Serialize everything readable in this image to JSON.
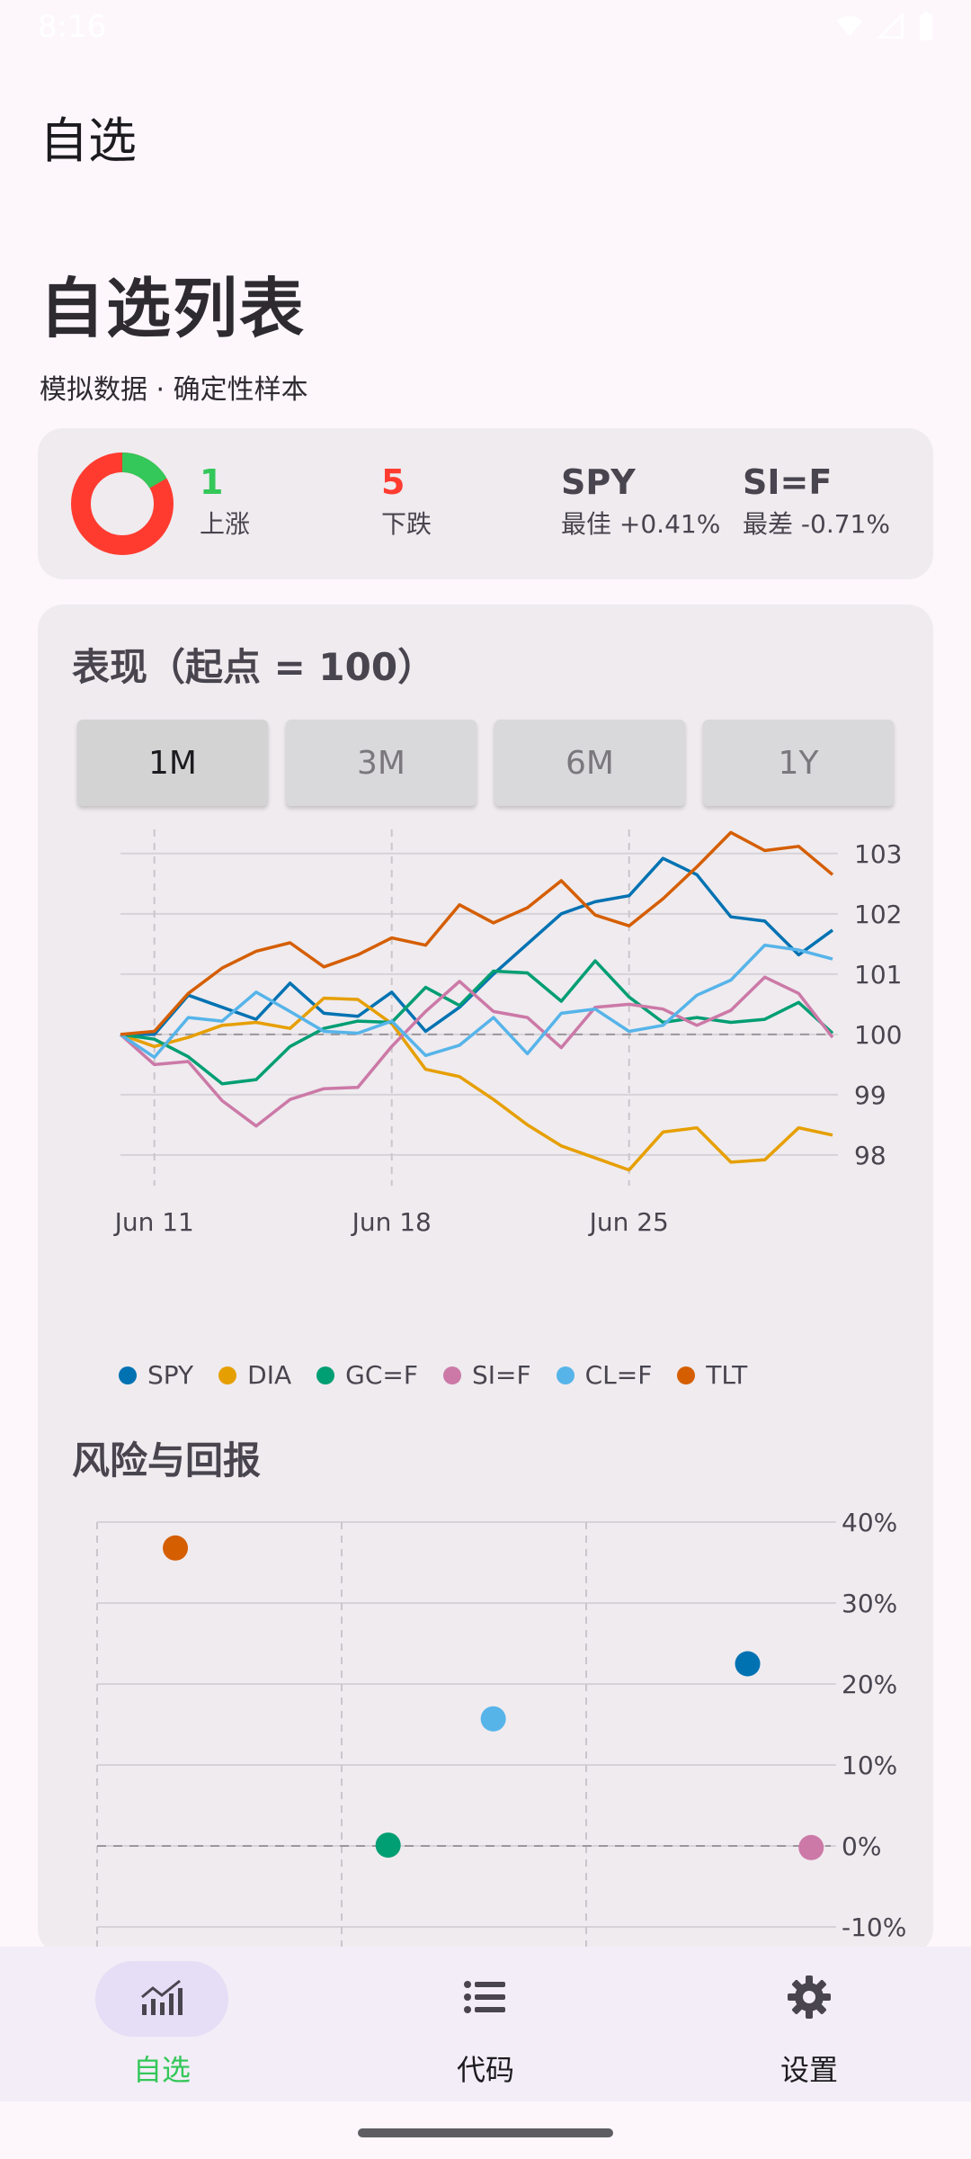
{
  "status_bar": {
    "time": "8:16"
  },
  "app_bar": {
    "title": "自选"
  },
  "header": {
    "title": "自选列表",
    "subtitle": "模拟数据 · 确定性样本"
  },
  "summary": {
    "up_count": "1",
    "up_label": "上涨",
    "up_color": "#34C759",
    "down_count": "5",
    "down_label": "下跌",
    "down_color": "#FF3B30",
    "best_symbol": "SPY",
    "best_text": "最佳 +0.41%",
    "worst_symbol": "SI=F",
    "worst_text": "最差 -0.71%",
    "donut": {
      "up_fraction": 0.1667,
      "up_color": "#34C759",
      "down_color": "#FF3B30"
    }
  },
  "performance": {
    "title": "表现（起点 = 100）",
    "range_tabs": [
      {
        "label": "1M",
        "active": true
      },
      {
        "label": "3M",
        "active": false
      },
      {
        "label": "6M",
        "active": false
      },
      {
        "label": "1Y",
        "active": false
      }
    ]
  },
  "risk": {
    "title": "风险与回报"
  },
  "chart_data": [
    {
      "type": "line",
      "title": "表现（起点 = 100）",
      "x": [
        "Jun 10",
        "Jun 11",
        "Jun 12",
        "Jun 13",
        "Jun 14",
        "Jun 15",
        "Jun 16",
        "Jun 17",
        "Jun 18",
        "Jun 19",
        "Jun 20",
        "Jun 21",
        "Jun 22",
        "Jun 23",
        "Jun 24",
        "Jun 25",
        "Jun 26",
        "Jun 27",
        "Jun 28",
        "Jun 29",
        "Jun 30",
        "Jul 1"
      ],
      "x_ticks": [
        "Jun 11",
        "Jun 18",
        "Jun 25"
      ],
      "ylim": [
        97.7,
        103.4
      ],
      "y_ticks": [
        98,
        99,
        100,
        101,
        102,
        103
      ],
      "baseline": 100,
      "grid": true,
      "legend_position": "bottom",
      "series": [
        {
          "name": "SPY",
          "color": "#0072B2",
          "values": [
            100.0,
            100.0,
            100.65,
            100.45,
            100.25,
            100.85,
            100.35,
            100.3,
            100.7,
            100.05,
            100.45,
            101.0,
            101.5,
            102.0,
            102.2,
            102.3,
            102.92,
            102.65,
            101.95,
            101.88,
            101.32,
            101.73
          ]
        },
        {
          "name": "DIA",
          "color": "#E69F00",
          "values": [
            100.0,
            99.8,
            99.95,
            100.15,
            100.2,
            100.1,
            100.6,
            100.58,
            100.18,
            99.42,
            99.3,
            98.92,
            98.5,
            98.15,
            97.95,
            97.75,
            98.38,
            98.45,
            97.88,
            97.92,
            98.45,
            98.33
          ]
        },
        {
          "name": "GC=F",
          "color": "#009E73",
          "values": [
            100.0,
            99.92,
            99.63,
            99.18,
            99.25,
            99.8,
            100.1,
            100.22,
            100.2,
            100.78,
            100.48,
            101.05,
            101.02,
            100.55,
            101.22,
            100.62,
            100.2,
            100.28,
            100.2,
            100.25,
            100.53,
            100.02
          ]
        },
        {
          "name": "SI=F",
          "color": "#CC79A7",
          "values": [
            100.0,
            99.5,
            99.55,
            98.9,
            98.48,
            98.92,
            99.1,
            99.12,
            99.8,
            100.38,
            100.88,
            100.38,
            100.28,
            99.78,
            100.45,
            100.5,
            100.42,
            100.15,
            100.4,
            100.95,
            100.68,
            99.95
          ]
        },
        {
          "name": "CL=F",
          "color": "#56B4E9",
          "values": [
            100.0,
            99.62,
            100.28,
            100.22,
            100.7,
            100.38,
            100.05,
            100.02,
            100.22,
            99.65,
            99.82,
            100.28,
            99.68,
            100.35,
            100.42,
            100.05,
            100.15,
            100.65,
            100.9,
            101.48,
            101.4,
            101.25
          ]
        },
        {
          "name": "TLT",
          "color": "#D55E00",
          "values": [
            100.0,
            100.05,
            100.68,
            101.1,
            101.38,
            101.52,
            101.12,
            101.32,
            101.6,
            101.48,
            102.15,
            101.85,
            102.1,
            102.55,
            101.98,
            101.8,
            102.25,
            102.78,
            103.35,
            103.05,
            103.12,
            102.65
          ]
        }
      ]
    },
    {
      "type": "scatter",
      "title": "风险与回报",
      "y_ticks": [
        "40%",
        "30%",
        "20%",
        "10%",
        "0%",
        "-10%"
      ],
      "ylim": [
        -10,
        40
      ],
      "xlim": [
        0,
        30
      ],
      "x_grid_ticks": [
        0,
        10,
        20
      ],
      "baseline": 0,
      "grid": true,
      "points": [
        {
          "name": "TLT",
          "color": "#D55E00",
          "x": 3.2,
          "y": 36.8
        },
        {
          "name": "SPY",
          "color": "#0072B2",
          "x": 26.6,
          "y": 22.5
        },
        {
          "name": "CL=F",
          "color": "#56B4E9",
          "x": 16.2,
          "y": 15.7
        },
        {
          "name": "GC=F",
          "color": "#009E73",
          "x": 11.9,
          "y": 0.1
        },
        {
          "name": "SI=F",
          "color": "#CC79A7",
          "x": 29.2,
          "y": -0.2
        }
      ]
    }
  ],
  "bottom_nav": {
    "items": [
      {
        "label": "自选",
        "icon": "chart-icon",
        "active": true
      },
      {
        "label": "代码",
        "icon": "list-icon",
        "active": false
      },
      {
        "label": "设置",
        "icon": "gear-icon",
        "active": false
      }
    ],
    "active_color": "#34C759"
  }
}
